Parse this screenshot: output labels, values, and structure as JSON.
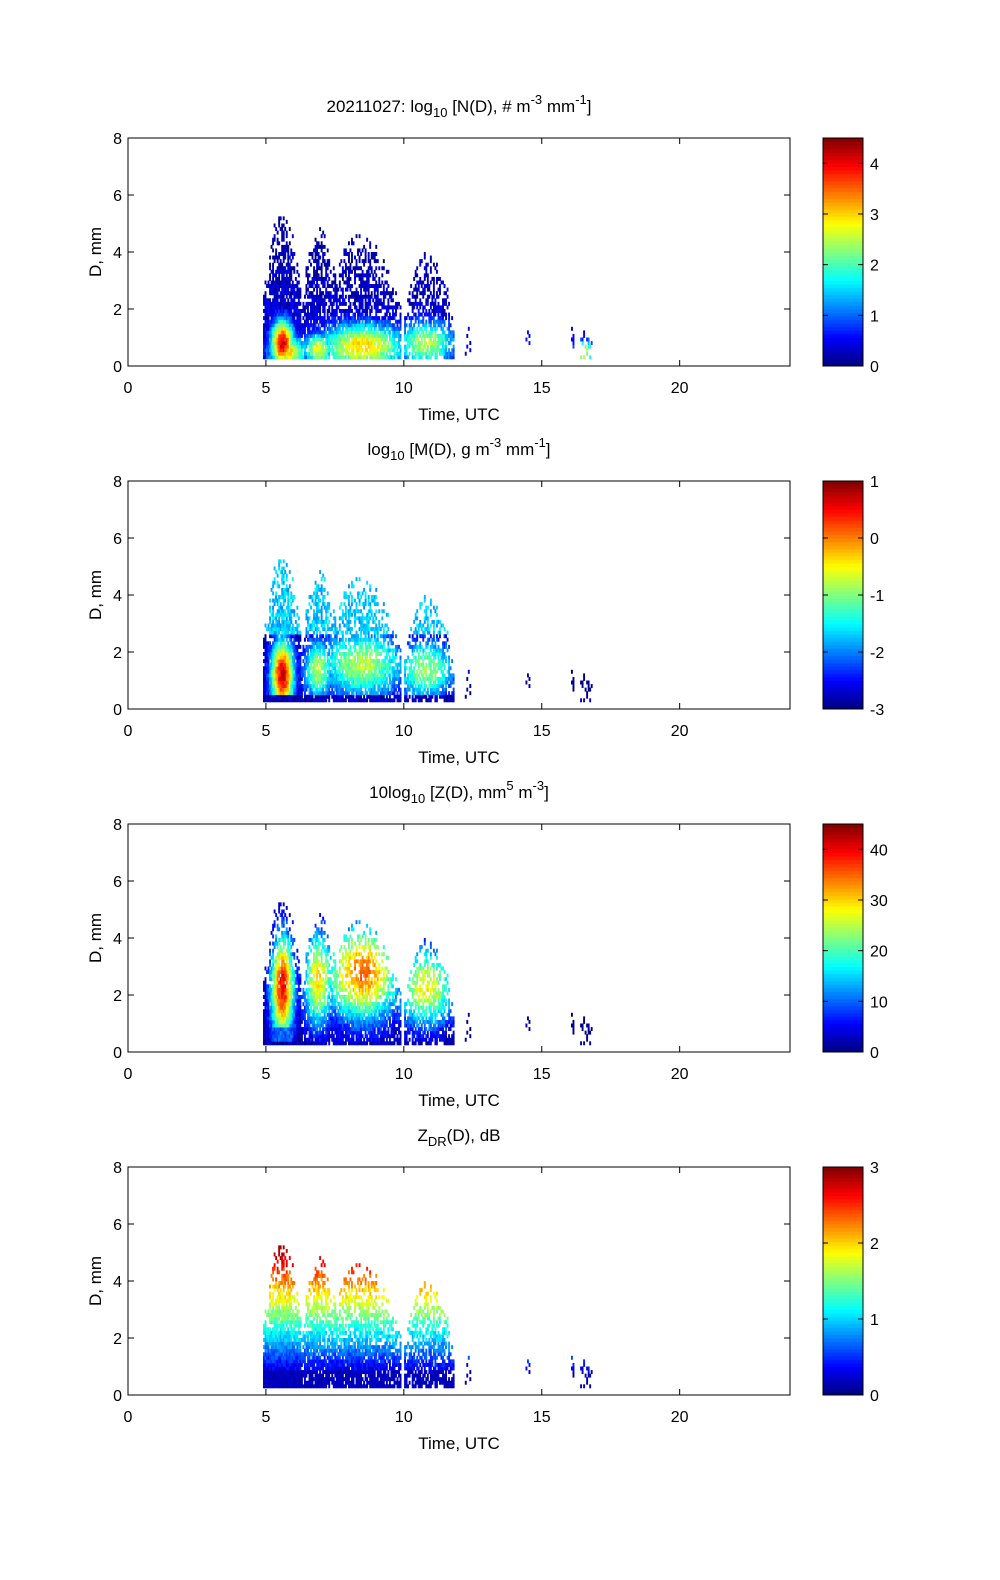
{
  "chart_data": [
    {
      "type": "heatmap",
      "title": {
        "pre": "20211027: log",
        "sub": "10",
        "mid1": " [N(D), # m",
        "sup1": "-3",
        "mid2": " mm",
        "sup2": "-1",
        "post": "]"
      },
      "xlabel": "Time, UTC",
      "ylabel": "D, mm",
      "xlim": [
        0,
        24
      ],
      "ylim": [
        0,
        8
      ],
      "xticks": [
        "0",
        "5",
        "10",
        "15",
        "20"
      ],
      "yticks": [
        "0",
        "2",
        "4",
        "6",
        "8"
      ],
      "colorbar": {
        "min": 0,
        "max": 4.5,
        "ticks": [
          "0",
          "1",
          "2",
          "3",
          "4"
        ]
      },
      "field": "N",
      "blobs": [
        {
          "t": 5.6,
          "d": 0.8,
          "st": 0.3,
          "sd": 0.6,
          "a": 4.1
        },
        {
          "t": 5.8,
          "d": 0.5,
          "st": 0.5,
          "sd": 0.4,
          "a": 3.0
        },
        {
          "t": 6.9,
          "d": 0.6,
          "st": 0.4,
          "sd": 0.4,
          "a": 2.8
        },
        {
          "t": 8.5,
          "d": 0.7,
          "st": 1.2,
          "sd": 0.6,
          "a": 3.0
        },
        {
          "t": 10.8,
          "d": 0.8,
          "st": 0.8,
          "sd": 0.6,
          "a": 2.5
        },
        {
          "t": 16.5,
          "d": 0.5,
          "st": 0.3,
          "sd": 0.3,
          "a": 2.8
        }
      ],
      "falloff": 0.55
    },
    {
      "type": "heatmap",
      "title": {
        "pre": "log",
        "sub": "10",
        "mid1": " [M(D), g m",
        "sup1": "-3",
        "mid2": " mm",
        "sup2": "-1",
        "post": "]"
      },
      "xlabel": "Time, UTC",
      "ylabel": "D, mm",
      "xlim": [
        0,
        24
      ],
      "ylim": [
        0,
        8
      ],
      "xticks": [
        "0",
        "5",
        "10",
        "15",
        "20"
      ],
      "yticks": [
        "0",
        "2",
        "4",
        "6",
        "8"
      ],
      "colorbar": {
        "min": -3,
        "max": 1,
        "ticks": [
          "1",
          "0",
          "-1",
          "-2",
          "-3"
        ],
        "tickvals": [
          1,
          0,
          -1,
          -2,
          -3
        ]
      },
      "field": "M",
      "blobs": [
        {
          "t": 5.6,
          "d": 1.2,
          "st": 0.3,
          "sd": 0.9,
          "a": 0.7
        },
        {
          "t": 6.9,
          "d": 1.4,
          "st": 0.4,
          "sd": 0.8,
          "a": -0.8
        },
        {
          "t": 8.5,
          "d": 1.6,
          "st": 1.2,
          "sd": 0.9,
          "a": -0.8
        },
        {
          "t": 10.8,
          "d": 1.4,
          "st": 0.8,
          "sd": 0.8,
          "a": -0.9
        }
      ],
      "falloff": 1.0
    },
    {
      "type": "heatmap",
      "title": {
        "pre": "10log",
        "sub": "10",
        "mid1": " [Z(D),  mm",
        "sup1": "5",
        "mid2": " m",
        "sup2": "-3",
        "post": "]"
      },
      "xlabel": "Time, UTC",
      "ylabel": "D, mm",
      "xlim": [
        0,
        24
      ],
      "ylim": [
        0,
        8
      ],
      "xticks": [
        "0",
        "5",
        "10",
        "15",
        "20"
      ],
      "yticks": [
        "0",
        "2",
        "4",
        "6",
        "8"
      ],
      "colorbar": {
        "min": 0,
        "max": 45,
        "ticks": [
          "40",
          "30",
          "20",
          "10",
          "0"
        ],
        "tickvals": [
          40,
          30,
          20,
          10,
          0
        ]
      },
      "field": "Z",
      "blobs": [
        {
          "t": 5.6,
          "d": 2.3,
          "st": 0.3,
          "sd": 1.3,
          "a": 40
        },
        {
          "t": 6.9,
          "d": 2.6,
          "st": 0.4,
          "sd": 1.2,
          "a": 30
        },
        {
          "t": 8.5,
          "d": 2.8,
          "st": 1.0,
          "sd": 1.2,
          "a": 35
        },
        {
          "t": 10.8,
          "d": 2.3,
          "st": 0.8,
          "sd": 1.0,
          "a": 28
        }
      ],
      "falloff": 1.0
    },
    {
      "type": "heatmap",
      "title": {
        "pre": "Z",
        "sub": "DR",
        "mid1": "(D), dB",
        "sup1": "",
        "mid2": "",
        "sup2": "",
        "post": ""
      },
      "xlabel": "Time, UTC",
      "ylabel": "D, mm",
      "xlim": [
        0,
        24
      ],
      "ylim": [
        0,
        8
      ],
      "xticks": [
        "0",
        "5",
        "10",
        "15",
        "20"
      ],
      "yticks": [
        "0",
        "2",
        "4",
        "6",
        "8"
      ],
      "colorbar": {
        "min": 0,
        "max": 3,
        "ticks": [
          "3",
          "2",
          "1",
          "0"
        ],
        "tickvals": [
          3,
          2,
          1,
          0
        ]
      },
      "field": "ZDR",
      "blobs": [],
      "falloff": 1.0
    }
  ],
  "events": [
    {
      "t": 5.6,
      "w": 0.7,
      "top": 5.5,
      "lo": 0.2,
      "s": 1.0
    },
    {
      "t": 6.9,
      "w": 0.6,
      "top": 5.0,
      "lo": 0.2,
      "s": 0.8
    },
    {
      "t": 8.4,
      "w": 1.5,
      "top": 4.6,
      "lo": 0.2,
      "s": 0.85
    },
    {
      "t": 10.9,
      "w": 0.9,
      "top": 4.0,
      "lo": 0.2,
      "s": 0.7
    },
    {
      "t": 5.1,
      "w": 0.05,
      "top": 2.0,
      "lo": 1.0,
      "s": 0.3
    },
    {
      "t": 12.3,
      "w": 0.12,
      "top": 1.6,
      "lo": 0.4,
      "s": 0.3
    },
    {
      "t": 14.5,
      "w": 0.1,
      "top": 1.9,
      "lo": 0.8,
      "s": 0.3
    },
    {
      "t": 15.1,
      "w": 0.04,
      "top": 1.5,
      "lo": 1.3,
      "s": 0.2
    },
    {
      "t": 16.1,
      "w": 0.08,
      "top": 1.7,
      "lo": 0.6,
      "s": 0.4
    },
    {
      "t": 16.6,
      "w": 0.25,
      "top": 1.4,
      "lo": 0.2,
      "s": 0.5
    }
  ]
}
